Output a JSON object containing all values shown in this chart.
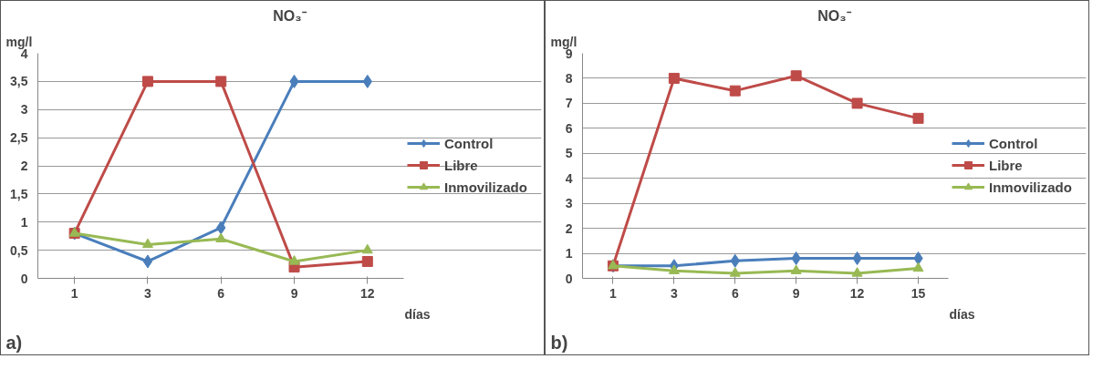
{
  "chart_data": [
    {
      "type": "line",
      "title": "NO₃⁻",
      "ylabel": "mg/l",
      "xlabel": "días",
      "annotations": [
        "a)"
      ],
      "categories": [
        "1",
        "3",
        "6",
        "9",
        "12"
      ],
      "series": [
        {
          "name": "Control",
          "color": "#4a7ebb",
          "marker": "diamond",
          "values": [
            0.8,
            0.3,
            0.9,
            3.5,
            3.5
          ]
        },
        {
          "name": "Libre",
          "color": "#be4b48",
          "marker": "square",
          "values": [
            0.8,
            3.5,
            3.5,
            0.2,
            0.3
          ]
        },
        {
          "name": "Inmovilizado",
          "color": "#98b954",
          "marker": "triangle",
          "values": [
            0.8,
            0.6,
            0.7,
            0.3,
            0.5
          ]
        }
      ],
      "ylim": [
        0,
        4
      ],
      "yticks": [
        0,
        {
          "value": 0.5,
          "label": "0,5"
        },
        1,
        {
          "value": 1.5,
          "label": "1,5"
        },
        2,
        {
          "value": 2.5,
          "label": "2,5"
        },
        3,
        {
          "value": 3.5,
          "label": "3,5"
        },
        4
      ],
      "grid": "y",
      "legend": "right"
    },
    {
      "type": "line",
      "title": "NO₃⁻",
      "ylabel": "mg/l",
      "xlabel": "días",
      "annotations": [
        "b)"
      ],
      "categories": [
        "1",
        "3",
        "6",
        "9",
        "12",
        "15"
      ],
      "series": [
        {
          "name": "Control",
          "color": "#4a7ebb",
          "marker": "diamond",
          "values": [
            0.5,
            0.5,
            0.7,
            0.8,
            0.8,
            0.8
          ]
        },
        {
          "name": "Libre",
          "color": "#be4b48",
          "marker": "square",
          "values": [
            0.5,
            8,
            7.5,
            8.1,
            7,
            6.4
          ]
        },
        {
          "name": "Inmovilizado",
          "color": "#98b954",
          "marker": "triangle",
          "values": [
            0.5,
            0.3,
            0.2,
            0.3,
            0.2,
            0.4
          ]
        }
      ],
      "ylim": [
        0,
        9
      ],
      "yticks": [
        0,
        1,
        2,
        3,
        4,
        5,
        6,
        7,
        8,
        9
      ],
      "grid": "y",
      "legend": "right"
    }
  ]
}
